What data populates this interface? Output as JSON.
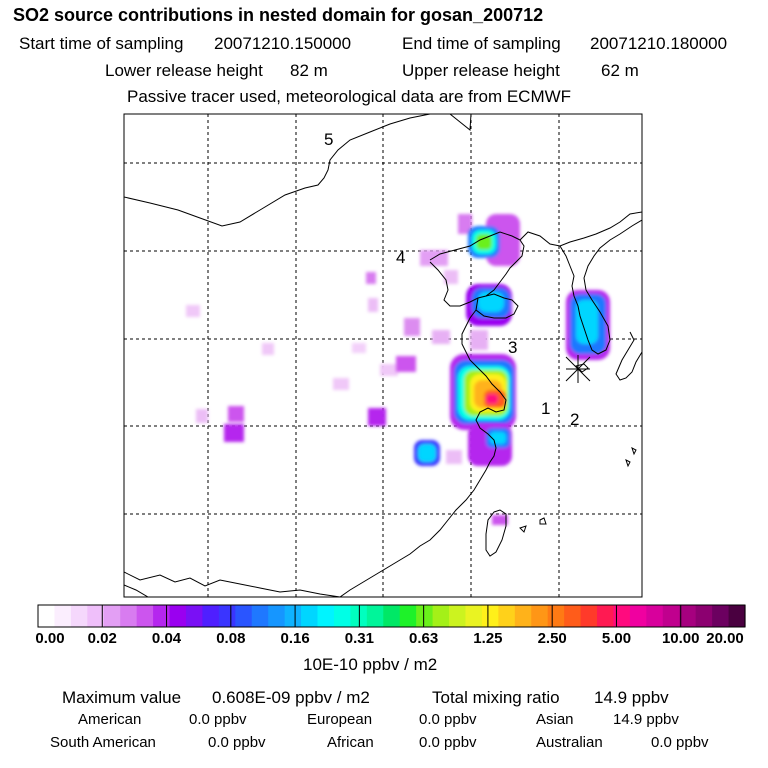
{
  "header": {
    "title": "SO2 source contributions in nested domain for gosan_200712",
    "start_label": "Start time of sampling",
    "start_value": "20071210.150000",
    "end_label": "End time of sampling",
    "end_value": "20071210.180000",
    "lower_label": "Lower release height",
    "lower_value": "82 m",
    "upper_label": "Upper release height",
    "upper_value": "62 m",
    "note": "Passive tracer used, meteorological data are from ECMWF"
  },
  "chart_data": {
    "type": "heatmap",
    "title": "SO2 source contributions in nested domain for gosan_200712",
    "unit": "10E-10 ppbv / m2",
    "colorbar_ticks": [
      "0.00",
      "0.02",
      "0.04",
      "0.08",
      "0.16",
      "0.31",
      "0.63",
      "1.25",
      "2.50",
      "5.00",
      "10.00",
      "20.00"
    ],
    "colorbar_colors": [
      "#ffffff",
      "#fbeefe",
      "#f5d8fc",
      "#efbffa",
      "#e39ff4",
      "#d87cf0",
      "#cc55ee",
      "#b526ee",
      "#9a00f0",
      "#7a10f5",
      "#4f1fff",
      "#3a35ff",
      "#2a55ff",
      "#1f78ff",
      "#1696ff",
      "#0fb3ff",
      "#00d6ff",
      "#00f4ff",
      "#00ffe6",
      "#00ffbf",
      "#00f59a",
      "#00e866",
      "#1ef229",
      "#6af01b",
      "#a4f018",
      "#ccf31f",
      "#eaf322",
      "#fff01a",
      "#ffd11a",
      "#ffb21a",
      "#ff9616",
      "#ff7a14",
      "#ff5c1a",
      "#ff3a2a",
      "#ff1a52",
      "#ff0a7e",
      "#f000a0",
      "#d8009c",
      "#c0008e",
      "#a6007f",
      "#8c0070",
      "#6c0060",
      "#4a0040"
    ],
    "region_labels": [
      "1",
      "2",
      "3",
      "4",
      "5"
    ],
    "receptor": "gosan"
  },
  "stats": {
    "max_label": "Maximum value",
    "max_value": "0.608E-09 ppbv / m2",
    "total_label": "Total mixing ratio",
    "total_value": "14.9 ppbv",
    "rows": [
      [
        {
          "name": "American",
          "value": "0.0 ppbv"
        },
        {
          "name": "European",
          "value": "0.0 ppbv"
        },
        {
          "name": "Asian",
          "value": "14.9 ppbv"
        }
      ],
      [
        {
          "name": "South American",
          "value": "0.0 ppbv"
        },
        {
          "name": "African",
          "value": "0.0 ppbv"
        },
        {
          "name": "Australian",
          "value": "0.0 ppbv"
        }
      ]
    ]
  }
}
